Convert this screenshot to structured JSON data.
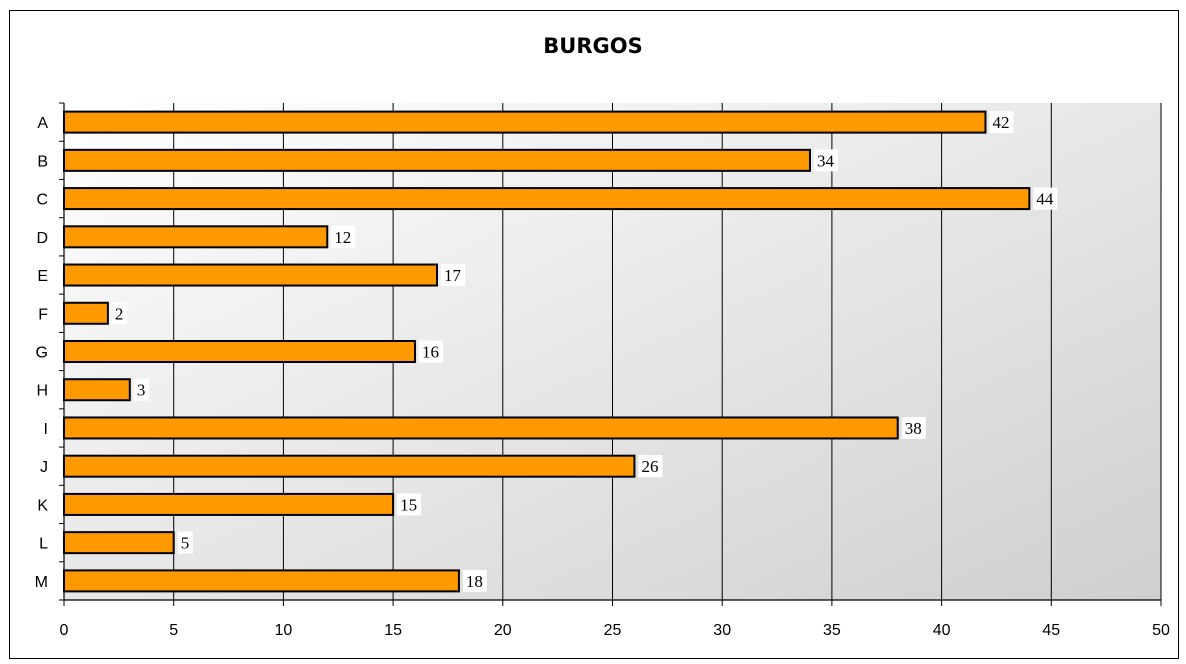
{
  "chart_data": {
    "type": "bar",
    "orientation": "horizontal",
    "title": "BURGOS",
    "xlabel": "",
    "ylabel": "",
    "categories": [
      "A",
      "B",
      "C",
      "D",
      "E",
      "F",
      "G",
      "H",
      "I",
      "J",
      "K",
      "L",
      "M"
    ],
    "values": [
      42,
      34,
      44,
      12,
      17,
      2,
      16,
      3,
      38,
      26,
      15,
      5,
      18
    ],
    "xlim": [
      0,
      50
    ],
    "xticks": [
      0,
      5,
      10,
      15,
      20,
      25,
      30,
      35,
      40,
      45,
      50
    ],
    "grid": true,
    "data_labels": true,
    "legend": "none",
    "colors": {
      "bar_fill": "#ff9900",
      "bar_stroke": "#000000",
      "plot_bg_light": "#ffffff",
      "plot_bg_dark": "#cfcfcf",
      "gridline": "#000000"
    }
  }
}
